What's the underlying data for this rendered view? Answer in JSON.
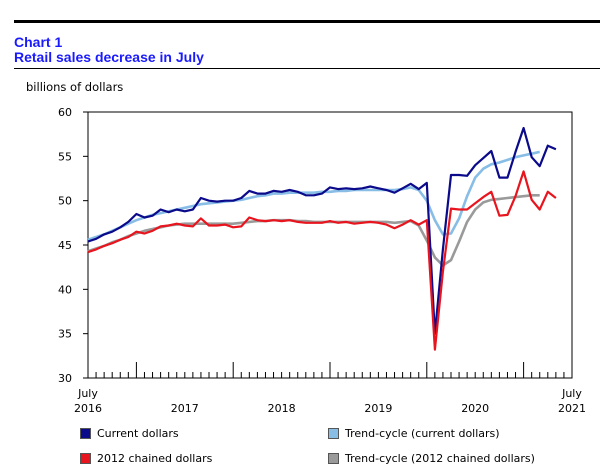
{
  "header": {
    "chart_number": "Chart 1",
    "title": "Retail sales decrease in July"
  },
  "chart_data": {
    "type": "line",
    "title": "Retail sales decrease in July",
    "ylabel": "billions of dollars",
    "ylim": [
      30,
      60
    ],
    "yticks": [
      30,
      35,
      40,
      45,
      50,
      55,
      60
    ],
    "x_range": [
      "2016-07",
      "2021-07"
    ],
    "xtick_labels": [
      {
        "line1": "July",
        "line2": "2016",
        "month_index": 0
      },
      {
        "line1": "",
        "line2": "2017",
        "month_index": 12
      },
      {
        "line1": "",
        "line2": "2018",
        "month_index": 24
      },
      {
        "line1": "",
        "line2": "2019",
        "month_index": 36
      },
      {
        "line1": "",
        "line2": "2020",
        "month_index": 48
      },
      {
        "line1": "July",
        "line2": "2021",
        "month_index": 60
      }
    ],
    "grid": false,
    "legend_placement": "bottom",
    "series": [
      {
        "name": "Current dollars",
        "color": "#0a0a8a",
        "values": [
          45.4,
          45.7,
          46.2,
          46.5,
          47.0,
          47.6,
          48.5,
          48.1,
          48.3,
          49.0,
          48.7,
          49.0,
          48.8,
          49.0,
          50.3,
          50.0,
          49.9,
          50.0,
          50.0,
          50.3,
          51.1,
          50.8,
          50.8,
          51.1,
          51.0,
          51.2,
          51.0,
          50.6,
          50.6,
          50.8,
          51.5,
          51.3,
          51.4,
          51.3,
          51.4,
          51.6,
          51.4,
          51.2,
          50.9,
          51.4,
          51.9,
          51.3,
          52.0,
          35.0,
          44.5,
          52.9,
          52.9,
          52.8,
          54.0,
          54.8,
          55.6,
          52.6,
          52.6,
          55.5,
          58.2,
          54.9,
          53.9,
          56.2,
          55.8
        ],
        "x_start_index": 0
      },
      {
        "name": "Trend-cycle (current dollars)",
        "color": "#88bde6",
        "values": [
          45.6,
          45.9,
          46.2,
          46.6,
          47.0,
          47.4,
          47.8,
          48.1,
          48.4,
          48.6,
          48.8,
          49.0,
          49.2,
          49.4,
          49.6,
          49.7,
          49.8,
          49.9,
          50.0,
          50.1,
          50.3,
          50.5,
          50.6,
          50.8,
          50.8,
          50.9,
          50.9,
          50.9,
          50.9,
          51.0,
          51.0,
          51.1,
          51.1,
          51.2,
          51.2,
          51.2,
          51.2,
          51.2,
          51.2,
          51.3,
          51.5,
          51.2,
          50.0,
          47.8,
          46.2,
          46.3,
          48.0,
          50.5,
          52.6,
          53.6,
          54.1,
          54.3,
          54.6,
          54.9,
          55.1,
          55.3,
          55.5
        ],
        "x_start_index": 0
      },
      {
        "name": "2012 chained dollars",
        "color": "#e8141e",
        "values": [
          44.2,
          44.5,
          44.9,
          45.2,
          45.6,
          45.9,
          46.5,
          46.3,
          46.6,
          47.1,
          47.2,
          47.4,
          47.2,
          47.1,
          48.0,
          47.2,
          47.2,
          47.3,
          47.0,
          47.1,
          48.1,
          47.8,
          47.7,
          47.8,
          47.7,
          47.8,
          47.6,
          47.5,
          47.5,
          47.5,
          47.7,
          47.5,
          47.6,
          47.4,
          47.5,
          47.6,
          47.5,
          47.3,
          46.9,
          47.3,
          47.8,
          47.3,
          47.8,
          33.2,
          42.0,
          49.1,
          49.0,
          49.0,
          49.7,
          50.4,
          51.0,
          48.3,
          48.4,
          50.5,
          53.3,
          50.1,
          49.0,
          51.0,
          50.3
        ],
        "x_start_index": 0
      },
      {
        "name": "Trend-cycle (2012 chained dollars)",
        "color": "#9a9a9a",
        "values": [
          44.3,
          44.6,
          44.9,
          45.3,
          45.6,
          46.0,
          46.3,
          46.6,
          46.8,
          47.0,
          47.2,
          47.3,
          47.4,
          47.4,
          47.4,
          47.4,
          47.4,
          47.4,
          47.4,
          47.5,
          47.6,
          47.7,
          47.7,
          47.8,
          47.8,
          47.8,
          47.7,
          47.7,
          47.6,
          47.6,
          47.6,
          47.6,
          47.6,
          47.6,
          47.6,
          47.6,
          47.6,
          47.6,
          47.5,
          47.6,
          47.7,
          47.2,
          45.5,
          43.6,
          42.7,
          43.3,
          45.4,
          47.6,
          49.0,
          49.8,
          50.1,
          50.2,
          50.3,
          50.4,
          50.5,
          50.6,
          50.6
        ],
        "x_start_index": 0
      }
    ]
  }
}
